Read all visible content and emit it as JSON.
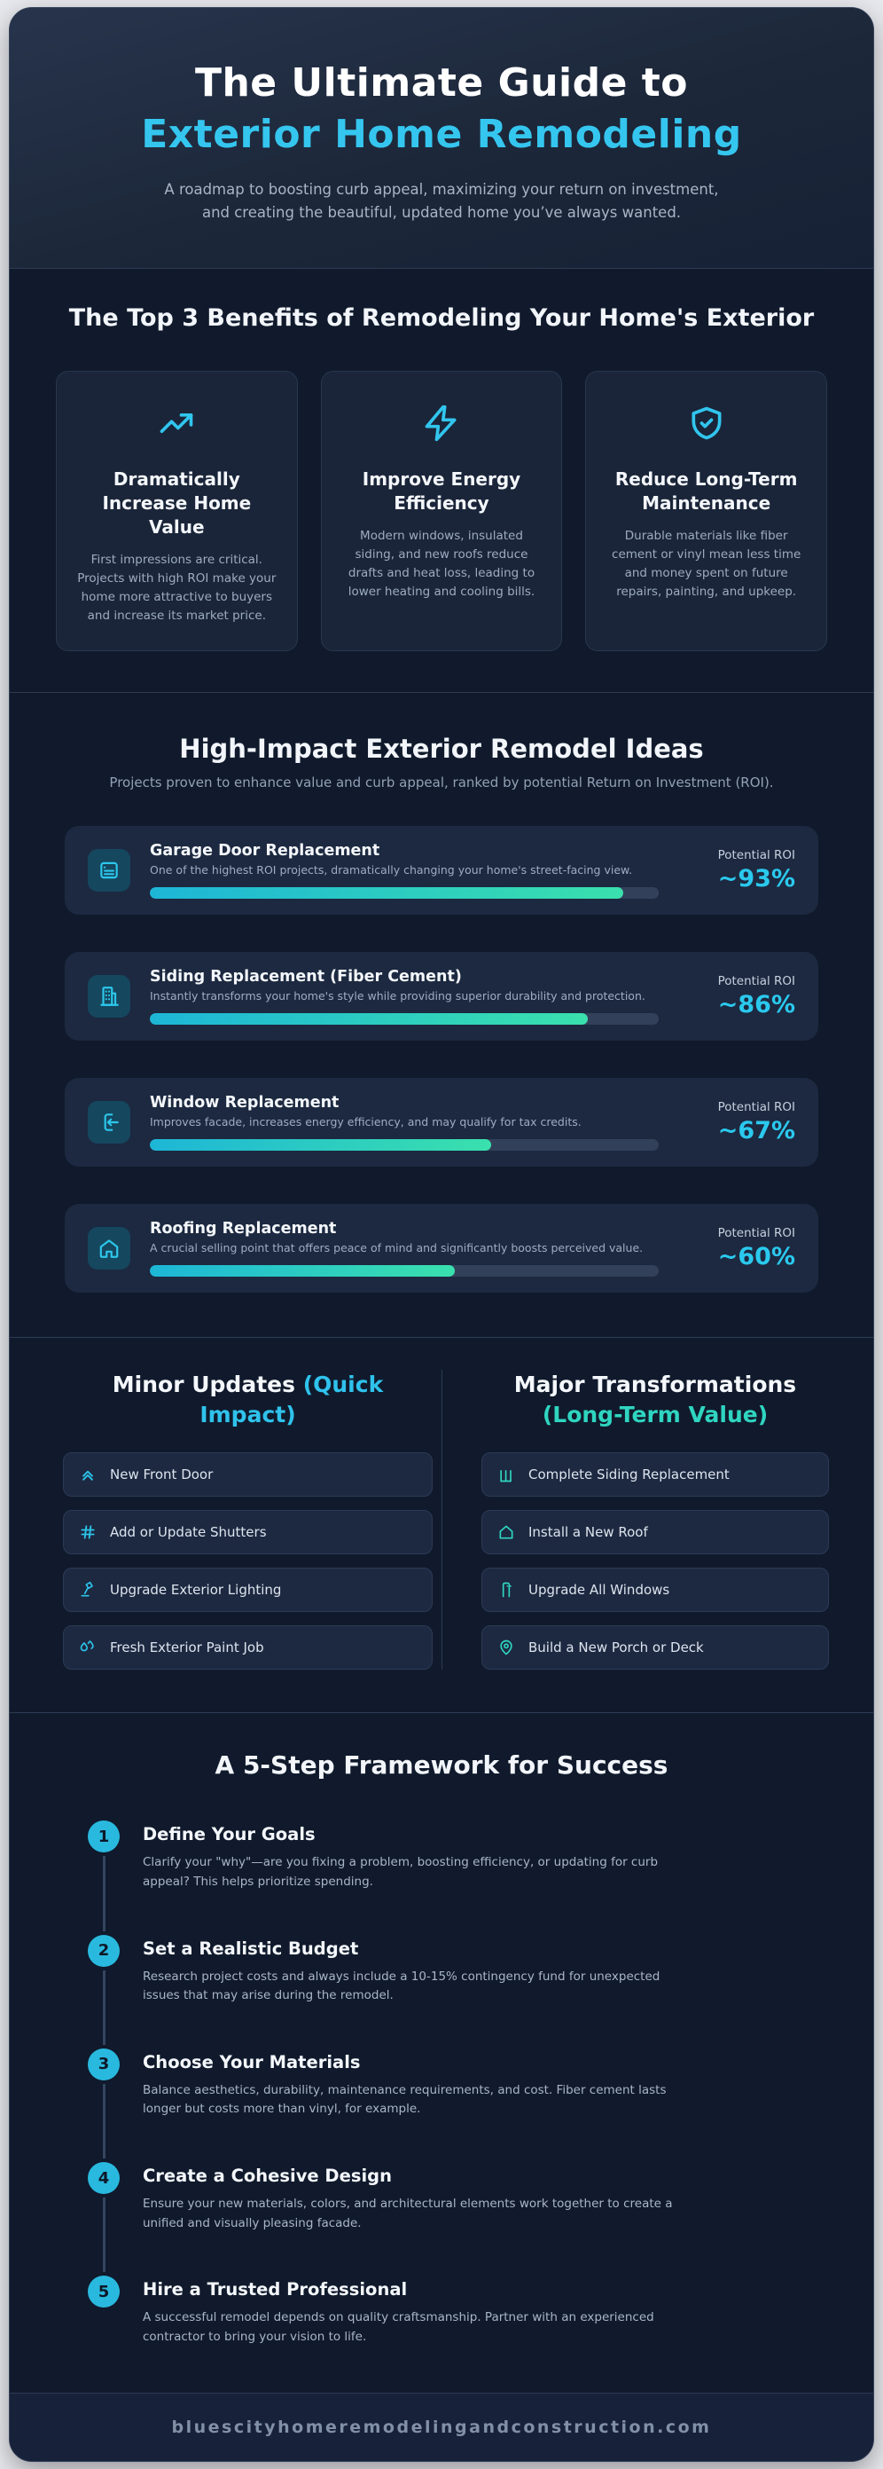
{
  "colors": {
    "accent_cyan": "#31c5ee",
    "accent_teal": "#2fd5c0",
    "bar_gradient_start": "#1db6d7",
    "bar_gradient_end": "#3ae0ad",
    "step_circle": "#29b9df",
    "section_background": "#101a2c",
    "card_background": "#1c2940"
  },
  "hero": {
    "title_line1": "The Ultimate Guide to",
    "title_line2": "Exterior Home Remodeling",
    "subtitle": "A roadmap to boosting curb appeal, maximizing your return on investment, and creating the beautiful, updated home you’ve always wanted."
  },
  "benefits": {
    "heading": "The Top 3 Benefits of Remodeling Your Home's Exterior",
    "cards": [
      {
        "icon": "trending-up-icon",
        "title": "Dramatically Increase Home Value",
        "body": "First impressions are critical. Projects with high ROI make your home more attractive to buyers and increase its market price."
      },
      {
        "icon": "lightning-bolt-icon",
        "title": "Improve Energy Efficiency",
        "body": "Modern windows, insulated siding, and new roofs reduce drafts and heat loss, leading to lower heating and cooling bills."
      },
      {
        "icon": "shield-check-icon",
        "title": "Reduce Long-Term Maintenance",
        "body": "Durable materials like fiber cement or vinyl mean less time and money spent on future repairs, painting, and upkeep."
      }
    ]
  },
  "roi": {
    "heading": "High-Impact Exterior Remodel Ideas",
    "subheading": "Projects proven to enhance value and curb appeal, ranked by potential Return on Investment (ROI).",
    "roi_label": "Potential ROI",
    "items": [
      {
        "icon": "garage-door-icon",
        "title": "Garage Door Replacement",
        "desc": "One of the highest ROI projects, dramatically changing your home's street-facing view.",
        "value_text": "~93%",
        "percent": 93
      },
      {
        "icon": "building-icon",
        "title": "Siding Replacement (Fiber Cement)",
        "desc": "Instantly transforms your home's style while providing superior durability and protection.",
        "value_text": "~86%",
        "percent": 86
      },
      {
        "icon": "door-arrow-icon",
        "title": "Window Replacement",
        "desc": "Improves facade, increases energy efficiency, and may qualify for tax credits.",
        "value_text": "~67%",
        "percent": 67
      },
      {
        "icon": "house-icon",
        "title": "Roofing Replacement",
        "desc": "A crucial selling point that offers peace of mind and significantly boosts perceived value.",
        "value_text": "~60%",
        "percent": 60
      }
    ]
  },
  "updates": {
    "minor": {
      "heading_main": "Minor Updates",
      "heading_accent": "(Quick Impact)",
      "items": [
        {
          "icon": "chevrons-up-icon",
          "label": "New Front Door"
        },
        {
          "icon": "shutters-hash-icon",
          "label": "Add or Update Shutters"
        },
        {
          "icon": "lamp-icon",
          "label": "Upgrade Exterior Lighting"
        },
        {
          "icon": "paint-droplets-icon",
          "label": "Fresh Exterior Paint Job"
        }
      ]
    },
    "major": {
      "heading_main": "Major Transformations",
      "heading_accent": "(Long-Term Value)",
      "items": [
        {
          "icon": "siding-panels-icon",
          "label": "Complete Siding Replacement"
        },
        {
          "icon": "roof-house-icon",
          "label": "Install a New Roof"
        },
        {
          "icon": "window-door-icon",
          "label": "Upgrade All Windows"
        },
        {
          "icon": "map-pin-icon",
          "label": "Build a New Porch or Deck"
        }
      ]
    }
  },
  "framework": {
    "heading": "A 5-Step Framework for Success",
    "steps": [
      {
        "num": "1",
        "title": "Define Your Goals",
        "body": "Clarify your \"why\"—are you fixing a problem, boosting efficiency, or updating for curb appeal? This helps prioritize spending."
      },
      {
        "num": "2",
        "title": "Set a Realistic Budget",
        "body": "Research project costs and always include a 10-15% contingency fund for unexpected issues that may arise during the remodel."
      },
      {
        "num": "3",
        "title": "Choose Your Materials",
        "body": "Balance aesthetics, durability, maintenance requirements, and cost. Fiber cement lasts longer but costs more than vinyl, for example."
      },
      {
        "num": "4",
        "title": "Create a Cohesive Design",
        "body": "Ensure your new materials, colors, and architectural elements work together to create a unified and visually pleasing facade."
      },
      {
        "num": "5",
        "title": "Hire a Trusted Professional",
        "body": "A successful remodel depends on quality craftsmanship. Partner with an experienced contractor to bring your vision to life."
      }
    ]
  },
  "footer": {
    "domain": "bluescityhomeremodelingandconstruction.com"
  },
  "chart_data": {
    "type": "bar",
    "orientation": "horizontal",
    "title": "High-Impact Exterior Remodel Ideas",
    "categories": [
      "Garage Door Replacement",
      "Siding Replacement (Fiber Cement)",
      "Window Replacement",
      "Roofing Replacement"
    ],
    "values": [
      93,
      86,
      67,
      60
    ],
    "value_labels": [
      "~93%",
      "~86%",
      "~67%",
      "~60%"
    ],
    "xlabel": "Potential ROI (%)",
    "xlim": [
      0,
      100
    ],
    "legend": false,
    "grid": false
  }
}
